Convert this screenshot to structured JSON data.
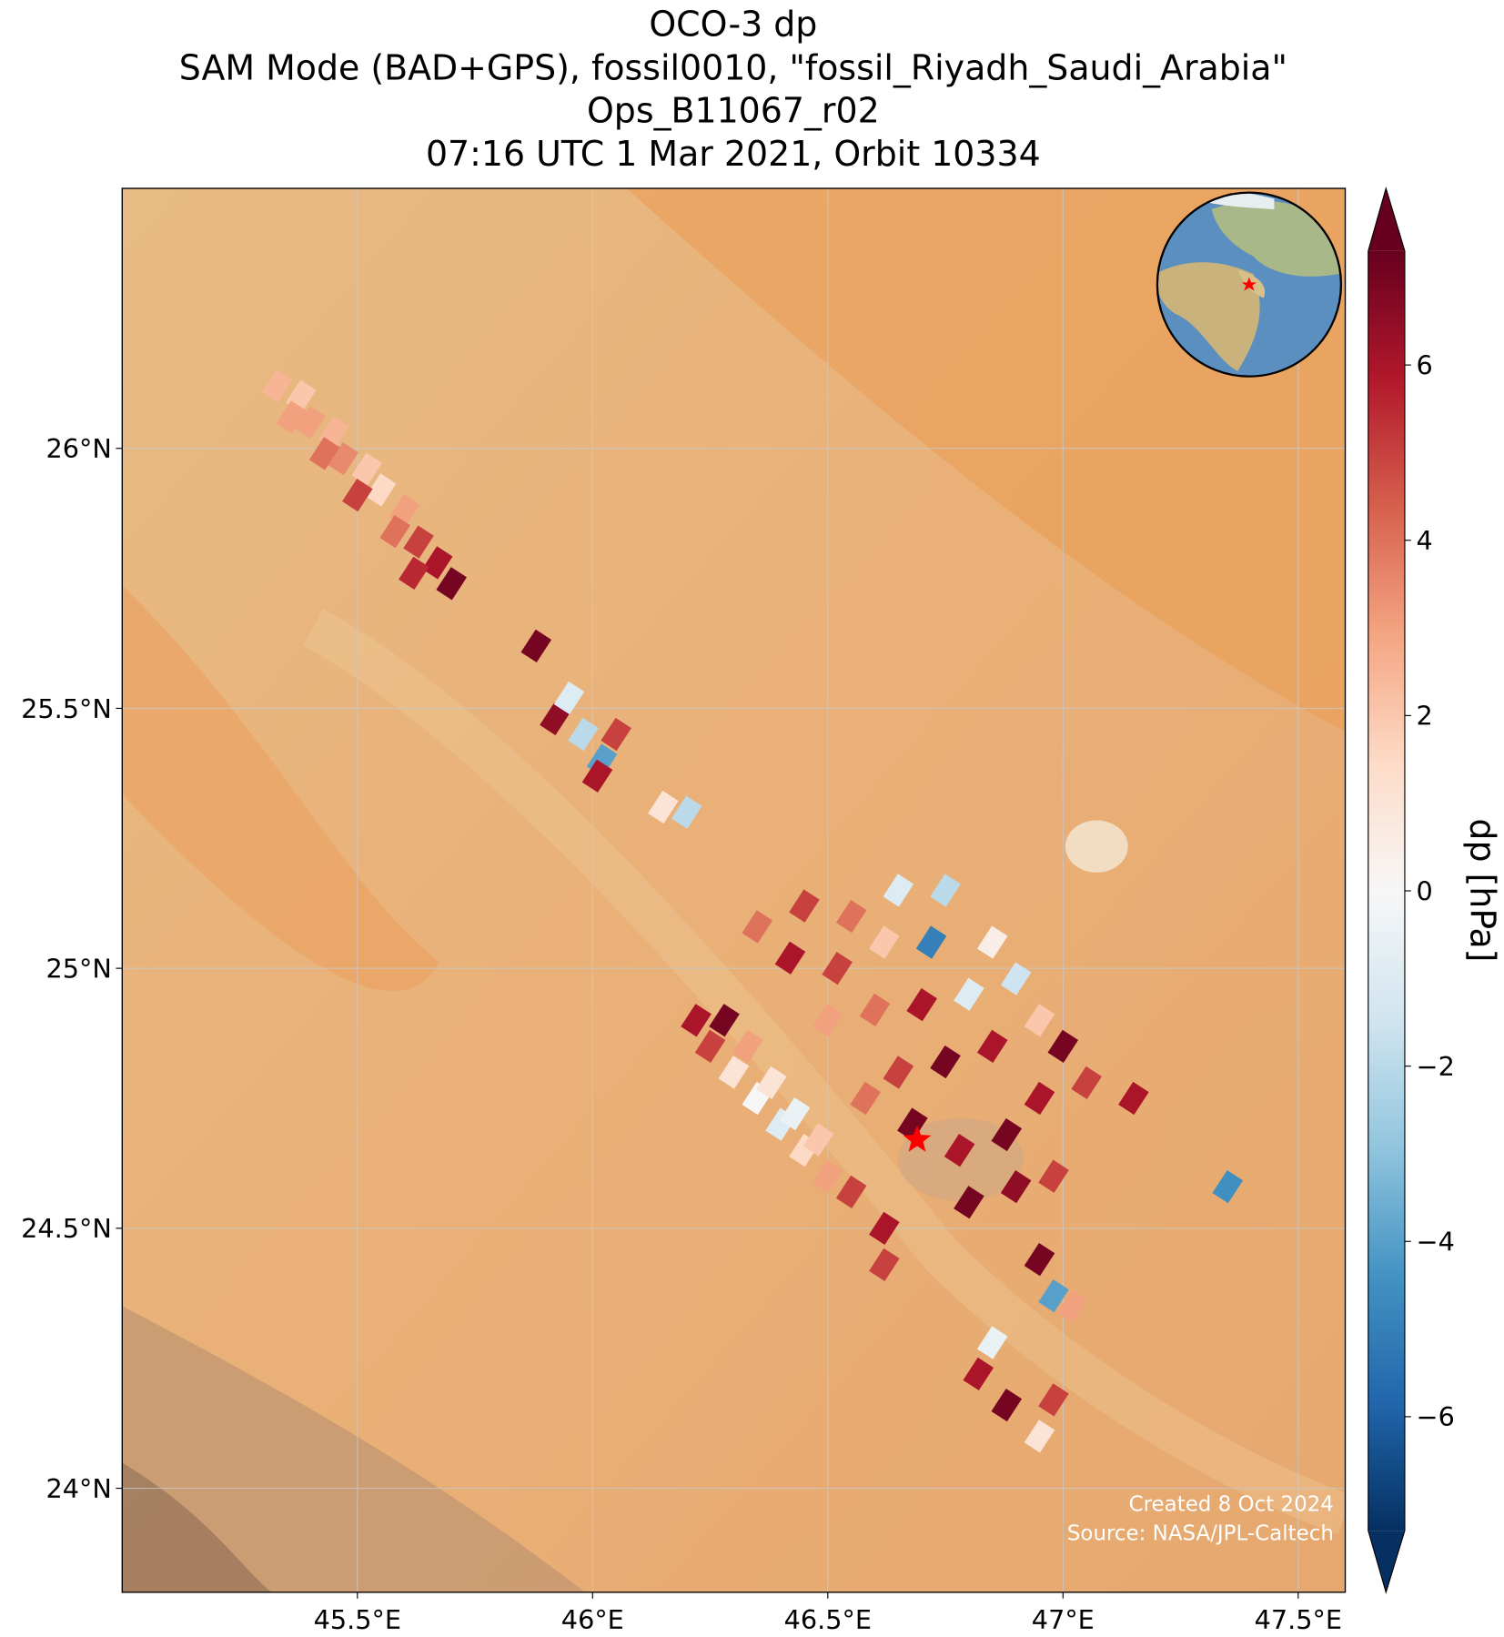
{
  "chart_data": {
    "type": "map",
    "title_lines": [
      "OCO-3 dp",
      "SAM Mode (BAD+GPS), fossil0010, \"fossil_Riyadh_Saudi_Arabia\"",
      "Ops_B11067_r02",
      "07:16 UTC 1 Mar 2021, Orbit 10334"
    ],
    "xlim": [
      45.0,
      47.6
    ],
    "ylim": [
      23.8,
      26.5
    ],
    "xticks": [
      {
        "value": 45.5,
        "label": "45.5°E"
      },
      {
        "value": 46,
        "label": "46°E"
      },
      {
        "value": 46.5,
        "label": "46.5°E"
      },
      {
        "value": 47,
        "label": "47°E"
      },
      {
        "value": 47.5,
        "label": "47.5°E"
      }
    ],
    "yticks": [
      {
        "value": 24,
        "label": "24°N"
      },
      {
        "value": 24.5,
        "label": "24.5°N"
      },
      {
        "value": 25,
        "label": "25°N"
      },
      {
        "value": 25.5,
        "label": "25.5°N"
      },
      {
        "value": 26,
        "label": "26°N"
      }
    ],
    "grid": true,
    "colorbar": {
      "label": "dp [hPa]",
      "clim": [
        -7.3,
        7.3
      ],
      "ticks": [
        {
          "value": -6,
          "label": "−6"
        },
        {
          "value": -4,
          "label": "−4"
        },
        {
          "value": -2,
          "label": "−2"
        },
        0,
        2,
        4,
        6
      ],
      "colors": [
        "#053061",
        "#2166ac",
        "#4393c3",
        "#92c5de",
        "#d1e5f0",
        "#f7f7f7",
        "#fddbc7",
        "#f4a582",
        "#d6604d",
        "#b2182b",
        "#67001f"
      ]
    },
    "soundings": {
      "lon": [
        45.33,
        45.38,
        45.4,
        45.45,
        45.47,
        45.52,
        45.55,
        45.6,
        45.58,
        45.63,
        45.67,
        45.7,
        45.36,
        45.43,
        45.5,
        45.62,
        45.88,
        45.92,
        45.98,
        46.02,
        46.05,
        45.95,
        46.2,
        46.15,
        46.01,
        46.45,
        46.55,
        46.65,
        46.75,
        46.72,
        46.62,
        46.52,
        46.42,
        46.35,
        46.5,
        46.6,
        46.7,
        46.8,
        46.9,
        46.85,
        46.95,
        47.0,
        46.85,
        46.75,
        46.65,
        46.58,
        46.68,
        46.78,
        46.88,
        46.95,
        47.05,
        47.15,
        46.8,
        46.9,
        46.98,
        46.22,
        46.25,
        46.3,
        46.35,
        46.4,
        46.45,
        46.5,
        46.55,
        46.28,
        46.33,
        46.38,
        46.43,
        46.48,
        46.62,
        46.62,
        46.95,
        46.98,
        47.02,
        46.85,
        46.82,
        46.88,
        46.98,
        47.35,
        46.95
      ],
      "lat": [
        26.12,
        26.1,
        26.05,
        26.03,
        25.98,
        25.96,
        25.92,
        25.88,
        25.84,
        25.82,
        25.78,
        25.74,
        26.06,
        25.99,
        25.91,
        25.76,
        25.62,
        25.48,
        25.45,
        25.4,
        25.45,
        25.52,
        25.3,
        25.31,
        25.37,
        25.12,
        25.1,
        25.15,
        25.15,
        25.05,
        25.05,
        25.0,
        25.02,
        25.08,
        24.9,
        24.92,
        24.93,
        24.95,
        24.98,
        25.05,
        24.9,
        24.85,
        24.85,
        24.82,
        24.8,
        24.75,
        24.7,
        24.65,
        24.68,
        24.75,
        24.78,
        24.75,
        24.55,
        24.58,
        24.6,
        24.9,
        24.85,
        24.8,
        24.75,
        24.7,
        24.65,
        24.6,
        24.57,
        24.9,
        24.85,
        24.78,
        24.72,
        24.67,
        24.5,
        24.43,
        24.44,
        24.37,
        24.35,
        24.28,
        24.22,
        24.16,
        24.17,
        24.58,
        24.1
      ],
      "values": [
        2.5,
        2.0,
        3,
        2.5,
        3.5,
        2,
        1.5,
        3,
        4,
        5,
        6,
        7,
        3,
        4,
        5,
        5.5,
        7,
        6.5,
        -2,
        -4,
        5,
        -1,
        -2,
        1,
        6,
        5,
        4,
        -1,
        -2,
        -5,
        2,
        5,
        6,
        4,
        3,
        4,
        6,
        -1,
        -1.5,
        0.5,
        2,
        7,
        6,
        7,
        5,
        4,
        7,
        6,
        7,
        6,
        5,
        6,
        7,
        6.5,
        5,
        6,
        5,
        1,
        0,
        -1,
        1.5,
        3,
        5,
        7,
        3,
        1,
        -0.5,
        2,
        6,
        5,
        7,
        -4,
        3,
        -0.5,
        6,
        7,
        5,
        -4.5,
        1
      ]
    },
    "target": {
      "lon": 46.69,
      "lat": 24.67
    },
    "credits": [
      "Created 8 Oct 2024",
      "Source: NASA/JPL-Caltech"
    ]
  }
}
